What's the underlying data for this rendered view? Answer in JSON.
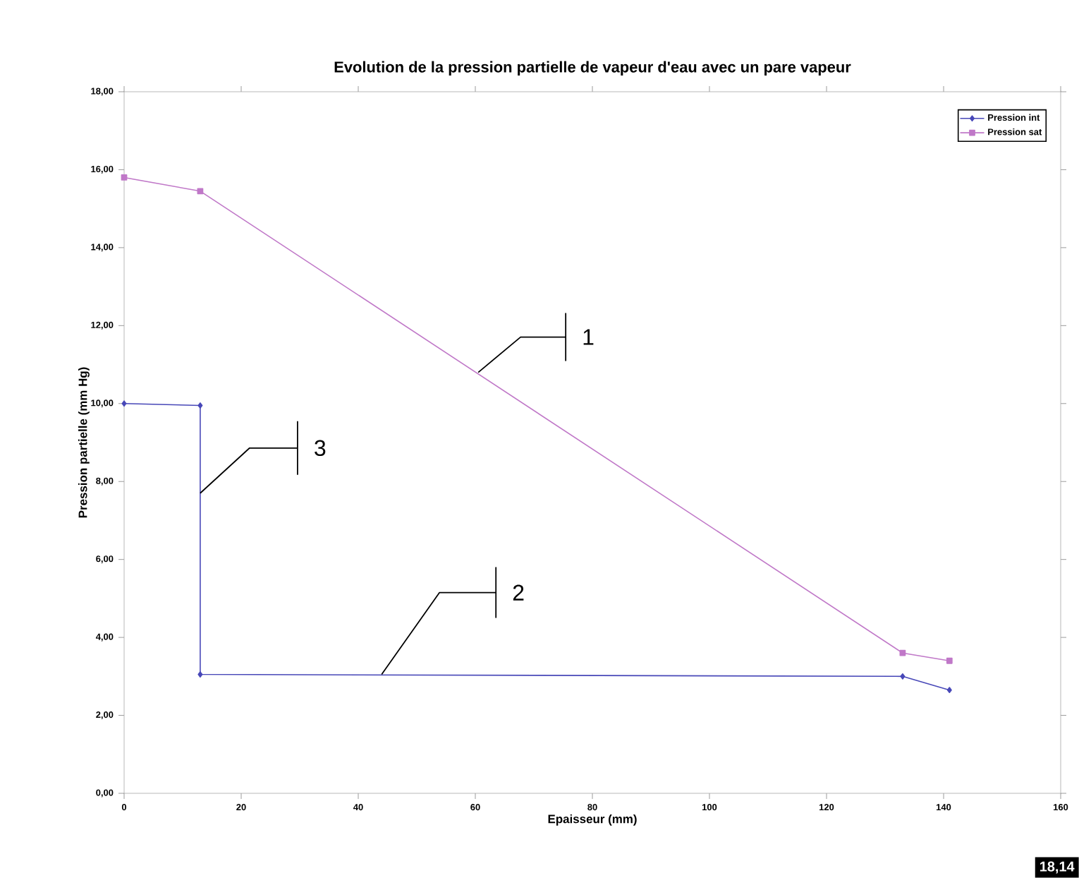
{
  "chart_data": {
    "type": "line",
    "title": "Evolution de la pression partielle de vapeur d'eau avec un pare vapeur",
    "xlabel": "Epaisseur (mm)",
    "ylabel": "Pression partielle (mm Hg)",
    "xlim": [
      0,
      160
    ],
    "xticks": [
      0,
      20,
      40,
      60,
      80,
      100,
      120,
      140,
      160
    ],
    "ylim": [
      0,
      18
    ],
    "yticks": [
      {
        "value": 0,
        "label": "0,00"
      },
      {
        "value": 2,
        "label": "2,00"
      },
      {
        "value": 4,
        "label": "4,00"
      },
      {
        "value": 6,
        "label": "6,00"
      },
      {
        "value": 8,
        "label": "8,00"
      },
      {
        "value": 10,
        "label": "10,00"
      },
      {
        "value": 12,
        "label": "12,00"
      },
      {
        "value": 14,
        "label": "14,00"
      },
      {
        "value": 16,
        "label": "16,00"
      },
      {
        "value": 18,
        "label": "18,00"
      }
    ],
    "grid": false,
    "legend": "top right",
    "series": [
      {
        "name": "Pression int",
        "color": "#4848b8",
        "marker": "diamond",
        "x": [
          0,
          13,
          13,
          133,
          141
        ],
        "values": [
          10,
          9.95,
          3.05,
          3.0,
          2.65
        ]
      },
      {
        "name": "Pression sat",
        "color": "#c078c8",
        "marker": "square",
        "x": [
          0,
          13,
          133,
          141
        ],
        "values": [
          15.8,
          15.45,
          3.6,
          3.4
        ]
      }
    ],
    "annotations": [
      {
        "text": "1",
        "x": 60.5,
        "y": 10.8
      },
      {
        "text": "3",
        "x": 13,
        "y": 7.7
      },
      {
        "text": "2",
        "x": 44,
        "y": 3.05
      },
      "18,14"
    ]
  }
}
